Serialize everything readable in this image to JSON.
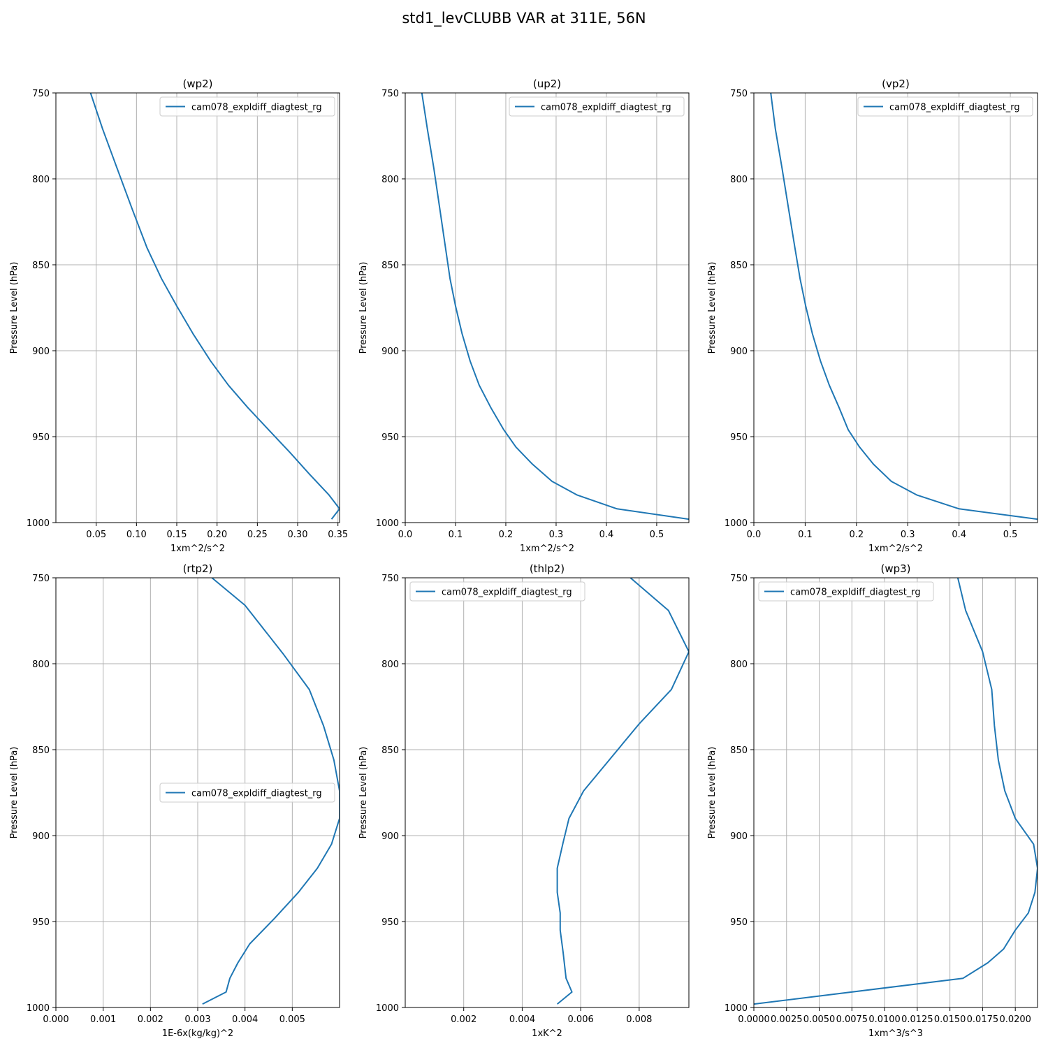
{
  "figure": {
    "suptitle": "std1_levCLUBB VAR at 311E, 56N"
  },
  "style": {
    "line_color": "#1f77b4",
    "grid_color": "#b0b0b0"
  },
  "chart_data": [
    {
      "type": "line",
      "title": "(wp2)",
      "xlabel": "1xm^2/s^2",
      "ylabel": "Pressure Level (hPa)",
      "xlim": [
        0.0,
        0.352
      ],
      "ylim": [
        1000,
        750
      ],
      "xticks": [
        0.05,
        0.1,
        0.15,
        0.2,
        0.25,
        0.3,
        0.35
      ],
      "xtick_labels": [
        "0.05",
        "0.10",
        "0.15",
        "0.20",
        "0.25",
        "0.30",
        "0.35"
      ],
      "yticks": [
        750,
        800,
        850,
        900,
        950,
        1000
      ],
      "ytick_labels": [
        "750",
        "800",
        "850",
        "900",
        "950",
        "1000"
      ],
      "grid": true,
      "legend_position": "top-right",
      "series": [
        {
          "name": "cam078_expldiff_diagtest_rg",
          "x": [
            0.043,
            0.058,
            0.076,
            0.095,
            0.113,
            0.131,
            0.15,
            0.17,
            0.192,
            0.214,
            0.238,
            0.264,
            0.29,
            0.315,
            0.339,
            0.352,
            0.342
          ],
          "y": [
            750,
            771,
            794,
            818,
            840,
            858,
            874,
            890,
            906,
            920,
            933,
            946,
            959,
            972,
            984,
            992,
            998
          ]
        }
      ]
    },
    {
      "type": "line",
      "title": "(up2)",
      "xlabel": "1xm^2/s^2",
      "ylabel": "Pressure Level (hPa)",
      "xlim": [
        0.0,
        0.564
      ],
      "ylim": [
        1000,
        750
      ],
      "xticks": [
        0.0,
        0.1,
        0.2,
        0.3,
        0.4,
        0.5
      ],
      "xtick_labels": [
        "0.0",
        "0.1",
        "0.2",
        "0.3",
        "0.4",
        "0.5"
      ],
      "yticks": [
        750,
        800,
        850,
        900,
        950,
        1000
      ],
      "ytick_labels": [
        "750",
        "800",
        "850",
        "900",
        "950",
        "1000"
      ],
      "grid": true,
      "legend_position": "top-right",
      "series": [
        {
          "name": "cam078_expldiff_diagtest_rg",
          "x": [
            0.033,
            0.044,
            0.057,
            0.069,
            0.08,
            0.089,
            0.1,
            0.113,
            0.129,
            0.147,
            0.17,
            0.196,
            0.22,
            0.253,
            0.292,
            0.342,
            0.421,
            0.564
          ],
          "y": [
            750,
            771,
            794,
            818,
            840,
            858,
            874,
            890,
            906,
            920,
            933,
            946,
            956,
            966,
            976,
            984,
            992,
            998
          ]
        }
      ]
    },
    {
      "type": "line",
      "title": "(vp2)",
      "xlabel": "1xm^2/s^2",
      "ylabel": "Pressure Level (hPa)",
      "xlim": [
        0.0,
        0.553
      ],
      "ylim": [
        1000,
        750
      ],
      "xticks": [
        0.0,
        0.1,
        0.2,
        0.3,
        0.4,
        0.5
      ],
      "xtick_labels": [
        "0.0",
        "0.1",
        "0.2",
        "0.3",
        "0.4",
        "0.5"
      ],
      "yticks": [
        750,
        800,
        850,
        900,
        950,
        1000
      ],
      "ytick_labels": [
        "750",
        "800",
        "850",
        "900",
        "950",
        "1000"
      ],
      "grid": true,
      "legend_position": "top-right",
      "series": [
        {
          "name": "cam078_expldiff_diagtest_rg",
          "x": [
            0.033,
            0.042,
            0.055,
            0.068,
            0.08,
            0.09,
            0.101,
            0.114,
            0.13,
            0.147,
            0.166,
            0.184,
            0.206,
            0.233,
            0.268,
            0.318,
            0.4,
            0.553
          ],
          "y": [
            750,
            771,
            794,
            818,
            840,
            858,
            874,
            890,
            906,
            920,
            933,
            946,
            956,
            966,
            976,
            984,
            992,
            998
          ]
        }
      ]
    },
    {
      "type": "line",
      "title": "(rtp2)",
      "xlabel": "1E-6x(kg/kg)^2",
      "ylabel": "Pressure Level (hPa)",
      "xlim": [
        0.0,
        0.006
      ],
      "ylim": [
        1000,
        750
      ],
      "xticks": [
        0.0,
        0.001,
        0.002,
        0.003,
        0.004,
        0.005
      ],
      "xtick_labels": [
        "0.000",
        "0.001",
        "0.002",
        "0.003",
        "0.004",
        "0.005"
      ],
      "yticks": [
        750,
        800,
        850,
        900,
        950,
        1000
      ],
      "ytick_labels": [
        "750",
        "800",
        "850",
        "900",
        "950",
        "1000"
      ],
      "grid": true,
      "legend_position": "center-right",
      "series": [
        {
          "name": "cam078_expldiff_diagtest_rg",
          "x": [
            0.0033,
            0.004,
            0.0048,
            0.00536,
            0.00566,
            0.00588,
            0.006,
            0.006,
            0.00583,
            0.00553,
            0.00513,
            0.00463,
            0.0041,
            0.00385,
            0.00368,
            0.0036,
            0.0031
          ],
          "y": [
            750,
            766,
            794,
            815,
            836,
            856,
            874,
            890,
            905,
            919,
            933,
            948,
            963,
            974,
            983,
            991,
            998
          ]
        }
      ]
    },
    {
      "type": "line",
      "title": "(thlp2)",
      "xlabel": "1xK^2",
      "ylabel": "Pressure Level (hPa)",
      "xlim": [
        0.0,
        0.0097
      ],
      "ylim": [
        1000,
        750
      ],
      "xticks": [
        0.002,
        0.004,
        0.006,
        0.008
      ],
      "xtick_labels": [
        "0.002",
        "0.004",
        "0.006",
        "0.008"
      ],
      "yticks": [
        750,
        800,
        850,
        900,
        950,
        1000
      ],
      "ytick_labels": [
        "750",
        "800",
        "850",
        "900",
        "950",
        "1000"
      ],
      "grid": true,
      "legend_position": "top-left",
      "series": [
        {
          "name": "cam078_expldiff_diagtest_rg",
          "x": [
            0.0077,
            0.009,
            0.0097,
            0.0091,
            0.008,
            0.0061,
            0.0056,
            0.0054,
            0.0052,
            0.0052,
            0.0053,
            0.0053,
            0.0054,
            0.0055,
            0.0057,
            0.0052
          ],
          "y": [
            750,
            769,
            793,
            815,
            835,
            874,
            890,
            904,
            919,
            933,
            945,
            955,
            968,
            983,
            991,
            998
          ]
        }
      ]
    },
    {
      "type": "line",
      "title": "(wp3)",
      "xlabel": "1xm^3/s^3",
      "ylabel": "Pressure Level (hPa)",
      "xlim": [
        0.0,
        0.0217
      ],
      "ylim": [
        1000,
        750
      ],
      "xticks": [
        0.0,
        0.0025,
        0.005,
        0.0075,
        0.01,
        0.0125,
        0.015,
        0.0175,
        0.02
      ],
      "xtick_labels": [
        "0.0000",
        "0.0025",
        "0.0050",
        "0.0075",
        "0.0100",
        "0.0125",
        "0.0150",
        "0.0175",
        "0.0200"
      ],
      "yticks": [
        750,
        800,
        850,
        900,
        950,
        1000
      ],
      "ytick_labels": [
        "750",
        "800",
        "850",
        "900",
        "950",
        "1000"
      ],
      "grid": true,
      "legend_position": "top-left",
      "series": [
        {
          "name": "cam078_expldiff_diagtest_rg",
          "x": [
            0.0156,
            0.0162,
            0.0175,
            0.0182,
            0.0184,
            0.0187,
            0.0192,
            0.02,
            0.0214,
            0.0217,
            0.0215,
            0.021,
            0.02,
            0.0191,
            0.0179,
            0.016,
            0.0
          ],
          "y": [
            750,
            769,
            793,
            815,
            836,
            856,
            874,
            890,
            905,
            919,
            933,
            945,
            955,
            966,
            974,
            983,
            998
          ]
        }
      ]
    }
  ]
}
